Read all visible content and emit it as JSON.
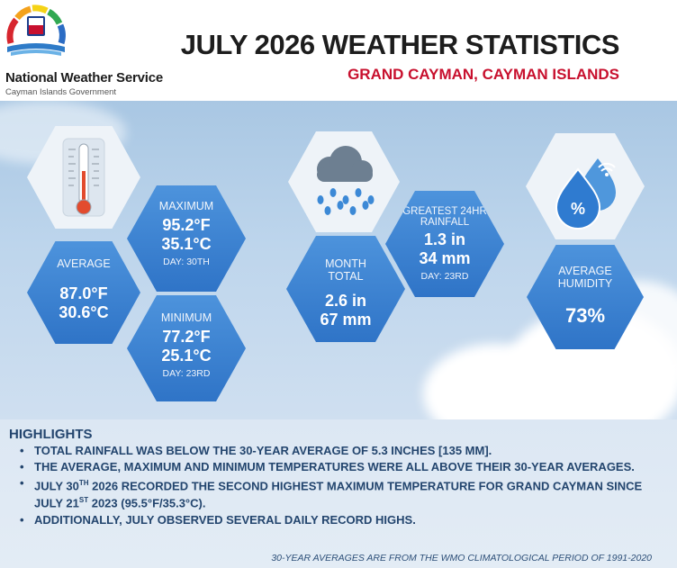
{
  "header": {
    "org_name": "National Weather Service",
    "org_sub": "Cayman Islands Government",
    "title": "JULY 2026 WEATHER STATISTICS",
    "subtitle": "GRAND CAYMAN, CAYMAN ISLANDS"
  },
  "temperature": {
    "icon": "thermometer-icon",
    "average": {
      "label": "AVERAGE",
      "f": "87.0°F",
      "c": "30.6°C"
    },
    "maximum": {
      "label": "MAXIMUM",
      "f": "95.2°F",
      "c": "35.1°C",
      "day": "DAY: 30TH"
    },
    "minimum": {
      "label": "MINIMUM",
      "f": "77.2°F",
      "c": "25.1°C",
      "day": "DAY: 23RD"
    }
  },
  "rainfall": {
    "icon": "rain-cloud-icon",
    "month_total": {
      "label1": "MONTH",
      "label2": "TOTAL",
      "in": "2.6 in",
      "mm": "67 mm"
    },
    "greatest_24hr": {
      "label1": "GREATEST 24HR",
      "label2": "RAINFALL",
      "in": "1.3 in",
      "mm": "34 mm",
      "day": "DAY: 23RD"
    }
  },
  "humidity": {
    "icon": "humidity-drops-icon",
    "label1": "AVERAGE",
    "label2": "HUMIDITY",
    "value": "73%"
  },
  "highlights": {
    "title": "HIGHLIGHTS",
    "items": [
      {
        "text": "TOTAL RAINFALL WAS BELOW THE 30-YEAR AVERAGE OF 5.3 INCHES [135 MM]."
      },
      {
        "text": "THE AVERAGE, MAXIMUM AND MINIMUM TEMPERATURES WERE ALL ABOVE THEIR 30-YEAR AVERAGES."
      },
      {
        "p1": "JULY 30",
        "sup1": "TH",
        "p2": " 2026 RECORDED THE SECOND HIGHEST MAXIMUM TEMPERATURE FOR GRAND CAYMAN SINCE JULY 21",
        "sup2": "ST",
        "p3": " 2023 (95.5°F/35.3°C)."
      },
      {
        "text": "ADDITIONALLY, JULY OBSERVED SEVERAL DAILY RECORD HIGHS."
      }
    ],
    "footnote": "30-YEAR AVERAGES ARE FROM THE WMO CLIMATOLOGICAL PERIOD OF 1991-2020"
  },
  "colors": {
    "title": "#1d1d1d",
    "subtitle": "#c8102e",
    "hex_blue": "#3a7fd0",
    "highlight_text": "#23456e"
  }
}
